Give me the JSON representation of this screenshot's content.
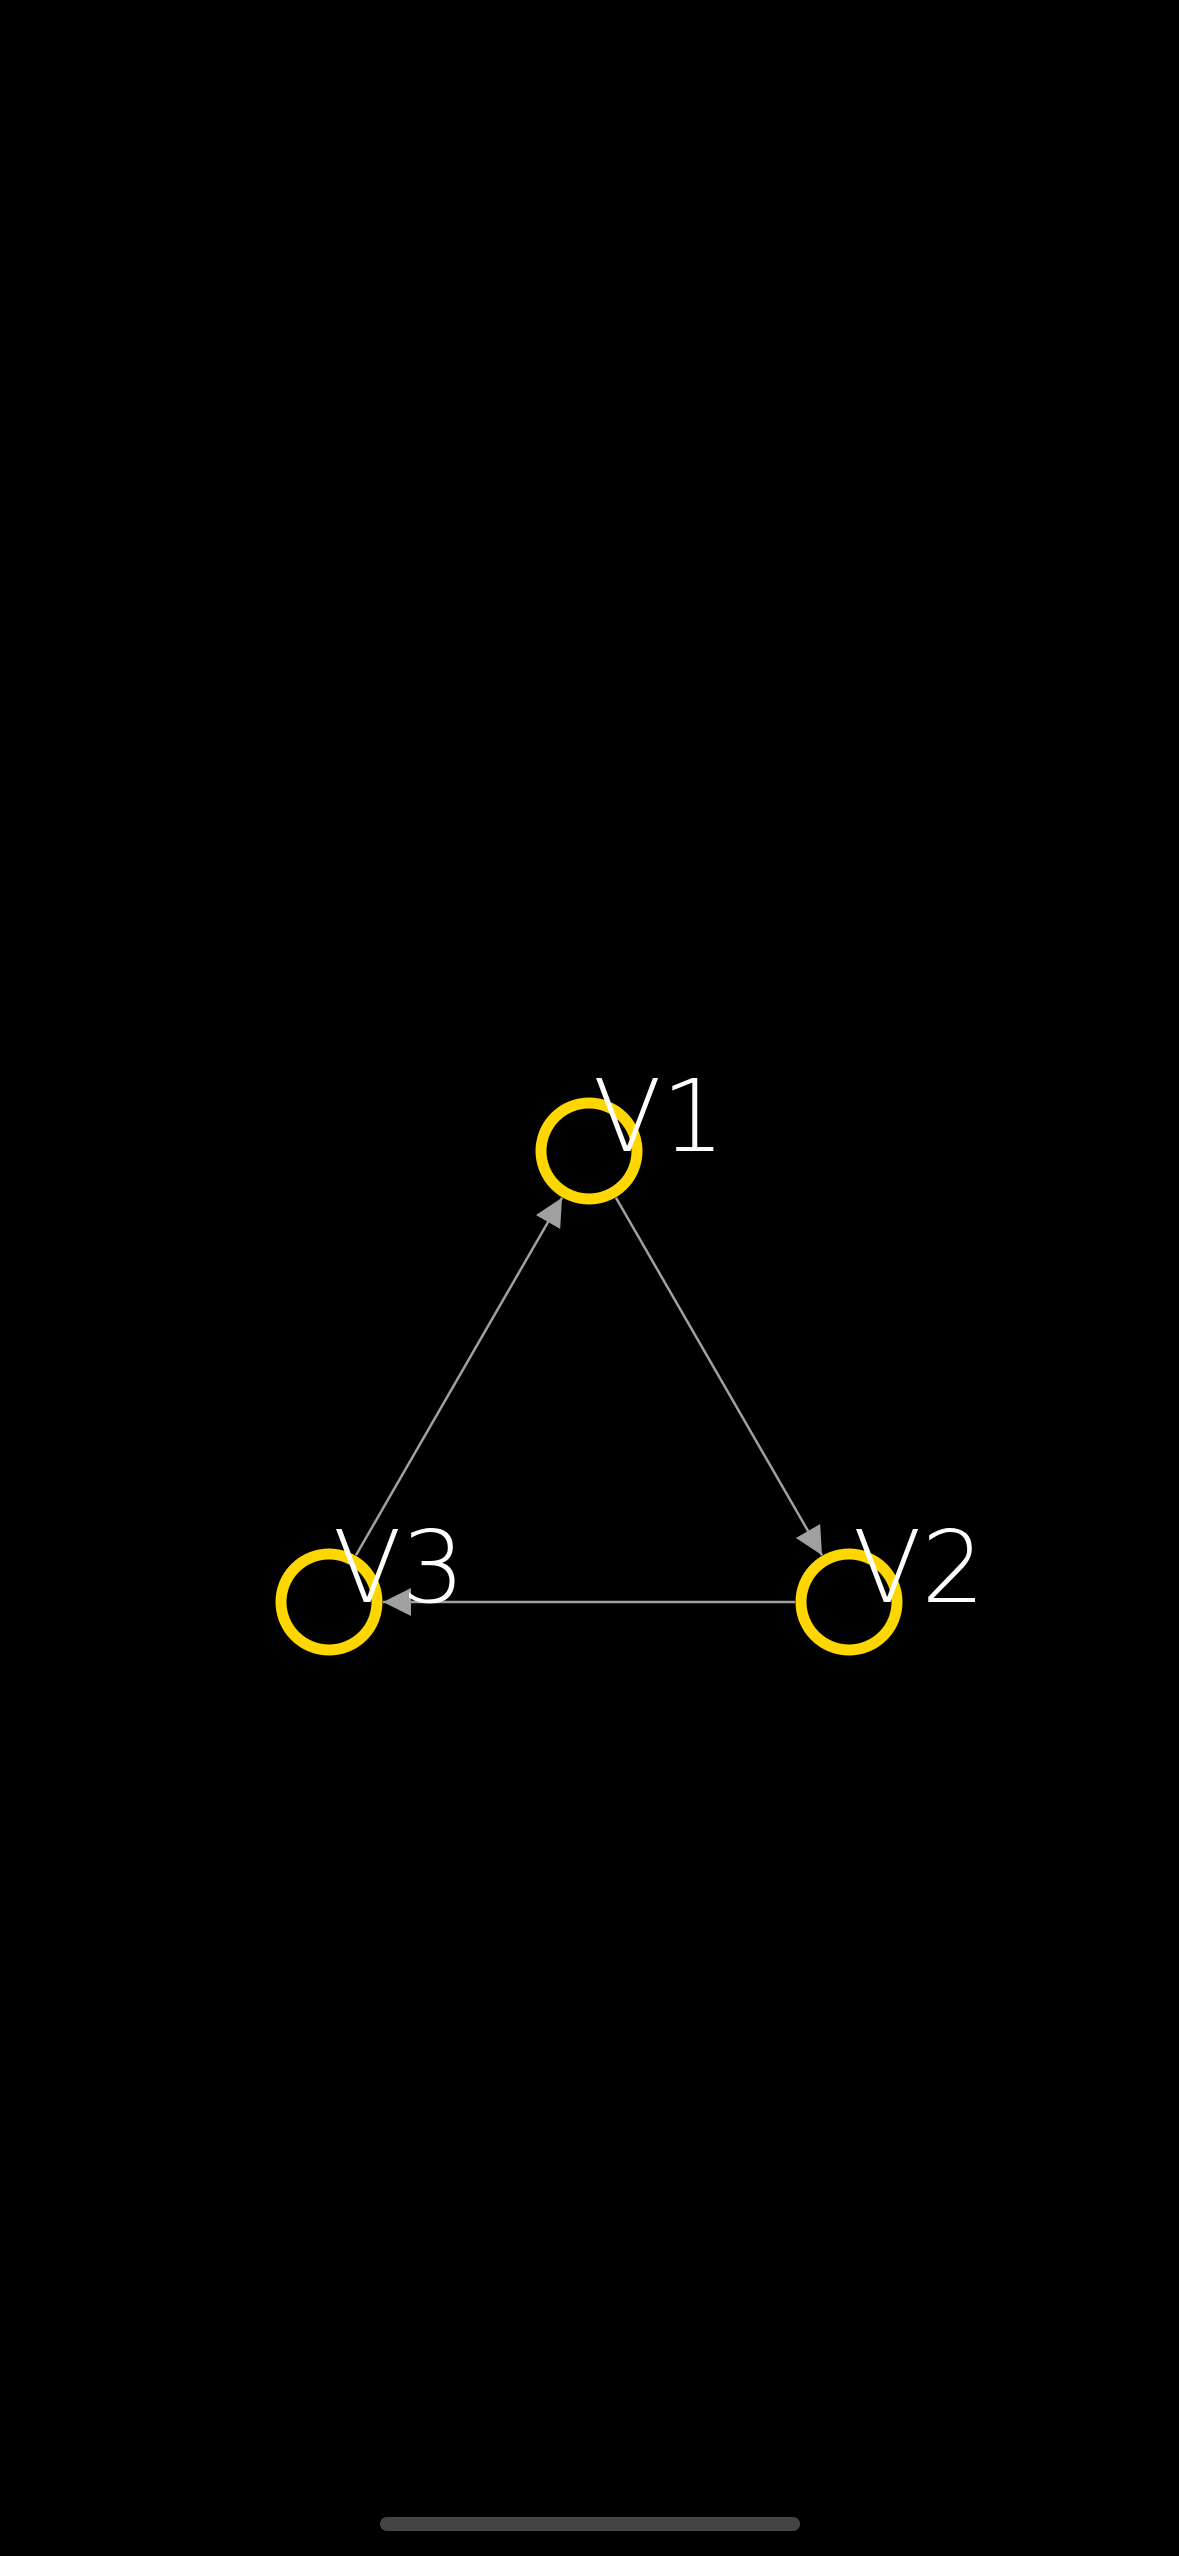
{
  "colors": {
    "background": "#000000",
    "vertex_stroke": "#ffd700",
    "edge": "#a0a0a0",
    "label": "#ffffff",
    "home_indicator": "#444444"
  },
  "graph": {
    "directed": true,
    "vertices": [
      {
        "id": "V1",
        "label": "V1"
      },
      {
        "id": "V2",
        "label": "V2"
      },
      {
        "id": "V3",
        "label": "V3"
      }
    ],
    "edges": [
      {
        "from": "V1",
        "to": "V2"
      },
      {
        "from": "V2",
        "to": "V3"
      },
      {
        "from": "V3",
        "to": "V1"
      }
    ]
  }
}
